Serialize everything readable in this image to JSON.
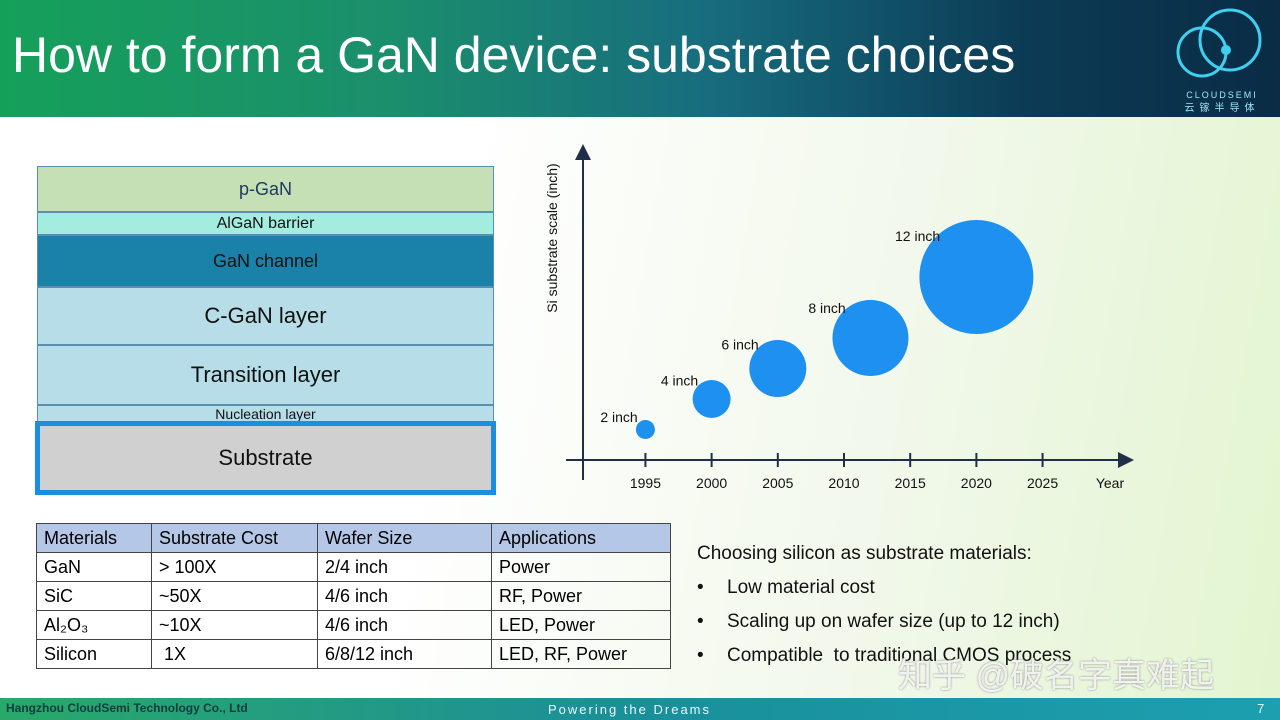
{
  "header": {
    "title": "How to form a GaN device: substrate choices",
    "logo_name": "CLOUDSEMI",
    "logo_cn": "云镓半导体"
  },
  "layers": [
    {
      "label": "p-GaN",
      "color": "#c5e0b4"
    },
    {
      "label": "AlGaN barrier",
      "color": "#a3ece0"
    },
    {
      "label": "GaN channel",
      "color": "#1a82a8"
    },
    {
      "label": "C-GaN layer",
      "color": "#b6dde8"
    },
    {
      "label": "Transition layer",
      "color": "#b6dde8"
    },
    {
      "label": "Nucleation layer",
      "color": "#b6dde8"
    },
    {
      "label": "Substrate",
      "color": "#d0d0d0"
    }
  ],
  "chart_data": {
    "type": "bubble",
    "y_label": "Si substrate scale (inch)",
    "x_label": "Year",
    "x": [
      1995,
      2000,
      2005,
      2012,
      2020
    ],
    "values": [
      2,
      4,
      6,
      8,
      12
    ],
    "value_labels": [
      "2 inch",
      "4 inch",
      "6 inch",
      "8 inch",
      "12 inch"
    ],
    "color": "#1e90f0",
    "xlim": [
      1989,
      2031
    ],
    "xticks": [
      1995,
      2000,
      2005,
      2010,
      2015,
      2020,
      2025
    ],
    "ylim": [
      0,
      20
    ]
  },
  "table": {
    "header": [
      "Materials",
      "Substrate Cost",
      "Wafer Size",
      "Applications"
    ],
    "rows": [
      [
        "GaN",
        "> 100X",
        "2/4 inch",
        "Power"
      ],
      [
        "SiC",
        "~50X",
        "4/6 inch",
        "RF, Power"
      ],
      [
        "Al₂O₃",
        "~10X",
        "4/6 inch",
        "LED, Power"
      ],
      [
        "Silicon",
        " 1X",
        "6/8/12 inch",
        "LED, RF, Power"
      ]
    ]
  },
  "notes": {
    "heading": "Choosing silicon as substrate materials:",
    "bullets": [
      "Low material cost",
      "Scaling up on wafer size (up to 12 inch)",
      "Compatible  to traditional CMOS process"
    ]
  },
  "watermark": "知乎 @破名字真难起",
  "footer": {
    "company": "Hangzhou CloudSemi Technology Co., Ltd",
    "slogan": "Powering the Dreams",
    "page": "7"
  }
}
